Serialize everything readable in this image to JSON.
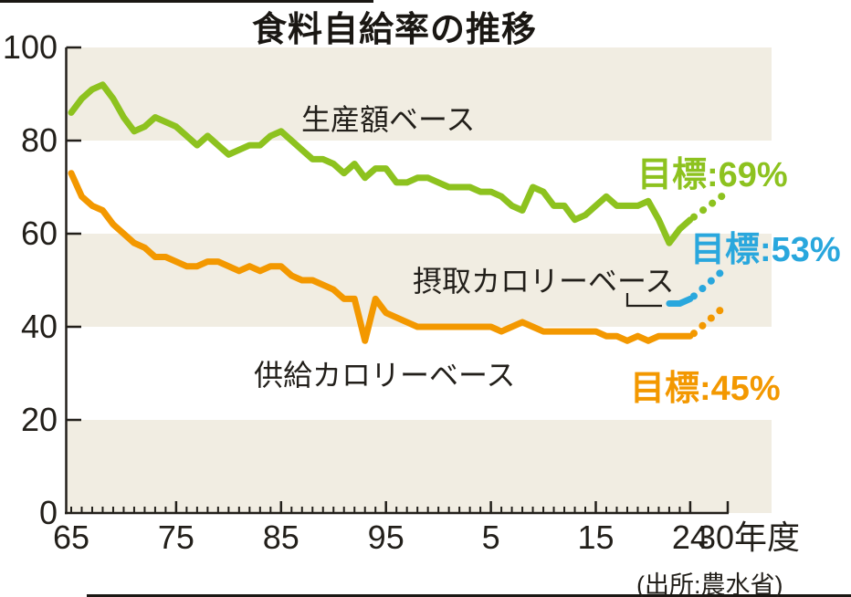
{
  "chart_data": {
    "type": "line",
    "title": "食料自給率の推移",
    "source": "(出所:農水省)",
    "x_axis": {
      "start_year": 1965,
      "last_actual_year": 2024,
      "end_year": 2030,
      "unit": "年度",
      "tick_labels": [
        {
          "year": 1965,
          "label": "65"
        },
        {
          "year": 1975,
          "label": "75"
        },
        {
          "year": 1985,
          "label": "85"
        },
        {
          "year": 1995,
          "label": "95"
        },
        {
          "year": 2005,
          "label": "5"
        },
        {
          "year": 2015,
          "label": "15"
        },
        {
          "year": 2024,
          "label": "24"
        },
        {
          "year": 2030,
          "label": "30年度",
          "align": "start"
        }
      ],
      "major_tick_years": [
        1975,
        1985,
        1995,
        2005,
        2015,
        2024,
        2030
      ]
    },
    "y_axis": {
      "min": 0,
      "max": 100,
      "tick_step": 20,
      "tick_values": [
        0,
        20,
        40,
        60,
        80,
        100
      ]
    },
    "bands": {
      "color": "#f1ede2",
      "ranges": [
        [
          80,
          100
        ],
        [
          40,
          60
        ],
        [
          0,
          20
        ]
      ]
    },
    "legend_position": "inline-labels",
    "grid": false,
    "series": [
      {
        "id": "production-value",
        "name": "生産額ベース",
        "color": "#8dc21f",
        "start_year": 1965,
        "values": [
          86,
          89,
          91,
          92,
          89,
          85,
          82,
          83,
          85,
          84,
          83,
          81,
          79,
          81,
          79,
          77,
          78,
          79,
          79,
          81,
          82,
          80,
          78,
          76,
          76,
          75,
          73,
          75,
          72,
          74,
          74,
          71,
          71,
          72,
          72,
          71,
          70,
          70,
          70,
          69,
          69,
          68,
          66,
          65,
          70,
          69,
          66,
          66,
          63,
          64,
          66,
          68,
          66,
          66,
          66,
          67,
          63,
          58,
          61,
          63
        ],
        "target": {
          "year": 2030,
          "value": 69,
          "label": "目標:69%"
        }
      },
      {
        "id": "supply-calorie",
        "name": "供給カロリーベース",
        "color": "#f39800",
        "start_year": 1965,
        "values": [
          73,
          68,
          66,
          65,
          62,
          60,
          58,
          57,
          55,
          55,
          54,
          53,
          53,
          54,
          54,
          53,
          52,
          53,
          52,
          53,
          53,
          51,
          50,
          50,
          49,
          48,
          46,
          46,
          37,
          46,
          43,
          42,
          41,
          40,
          40,
          40,
          40,
          40,
          40,
          40,
          40,
          39,
          40,
          41,
          40,
          39,
          39,
          39,
          39,
          39,
          39,
          38,
          38,
          37,
          38,
          37,
          38,
          38,
          38,
          38
        ],
        "target": {
          "year": 2030,
          "value": 45,
          "label": "目標:45%"
        }
      },
      {
        "id": "intake-calorie",
        "name": "摂取カロリーベース",
        "color": "#29a7dd",
        "start_year": 2022,
        "values": [
          45,
          45,
          46
        ],
        "target": {
          "year": 2030,
          "value": 53,
          "label": "目標:53%"
        }
      }
    ]
  }
}
